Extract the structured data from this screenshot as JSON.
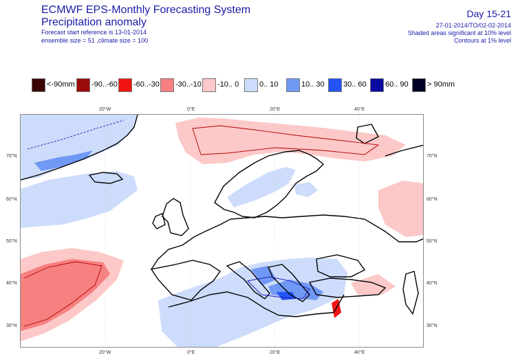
{
  "header": {
    "title": "ECMWF EPS-Monthly Forecasting System",
    "subtitle": "Precipitation anomaly",
    "forecast_ref": "Forecast start reference is 13-01-2014",
    "ensemble": "ensemble size = 51 ,climate size = 100",
    "day_range": "Day 15-21",
    "date_range": "27-01-2014/TO/02-02-2014",
    "shaded_note": "Shaded areas significant at 10% level",
    "contour_note": "Contours at 1% level"
  },
  "legend": {
    "items": [
      {
        "label": "<-90mm",
        "color": "#3a0505"
      },
      {
        "label": "-90..-60",
        "color": "#9a0a0a"
      },
      {
        "label": "-60..-30",
        "color": "#f21414"
      },
      {
        "label": "-30..-10",
        "color": "#f78080"
      },
      {
        "label": "-10..  0",
        "color": "#fcc8c8"
      },
      {
        "label": "0..  10",
        "color": "#cddcfa"
      },
      {
        "label": "10..  30",
        "color": "#7099f5"
      },
      {
        "label": "30..  60",
        "color": "#2454f5"
      },
      {
        "label": "60..  90",
        "color": "#0a0aa0"
      },
      {
        "label": ">  90mm",
        "color": "#000025"
      }
    ]
  },
  "axes": {
    "lon_ticks": [
      "20°W",
      "0°E",
      "20°E",
      "40°E"
    ],
    "lat_ticks": [
      "70°N",
      "60°N",
      "50°N",
      "40°N",
      "30°N"
    ]
  },
  "colors": {
    "coast": "#000000",
    "contour_red": "#b00000",
    "contour_blue": "#1a1ab0"
  }
}
